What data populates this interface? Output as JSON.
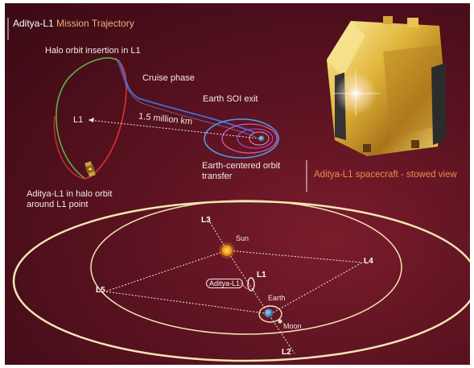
{
  "title": {
    "main": "Aditya-L1",
    "sub": " Mission Trajectory"
  },
  "trajectory": {
    "halo_insertion": "Halo orbit insertion in L1",
    "cruise_phase": "Cruise phase",
    "soi_exit": "Earth SOI exit",
    "l1": "L1",
    "distance": "1.5 million km",
    "earth_transfer": "Earth-centered orbit transfer",
    "halo_orbit": "Aditya-L1 in halo orbit around L1 point"
  },
  "spacecraft_caption": "Aditya-L1 spacecraft - stowed view",
  "lagrange": {
    "l1": "L1",
    "l2": "L2",
    "l3": "L3",
    "l4": "L4",
    "l5": "L5",
    "sun": "Sun",
    "earth": "Earth",
    "moon": "Moon",
    "aditya_tag": "Aditya-L1"
  },
  "colors": {
    "background": "#5a1220",
    "halo_green": "#5fae4a",
    "halo_red": "#e0322e",
    "cruise_blue": "#3f6fd6",
    "earth_orbit_blue": "#4aa0e8",
    "earth_orbit_pink": "#d85aa8",
    "orbit_cream": "#f2e6b0",
    "caption_orange": "#f08a4e",
    "sun_orange": "#f7a21c"
  },
  "icons": [
    "spacecraft-icon",
    "sun-icon",
    "earth-icon",
    "moon-icon",
    "satellite-icon"
  ]
}
